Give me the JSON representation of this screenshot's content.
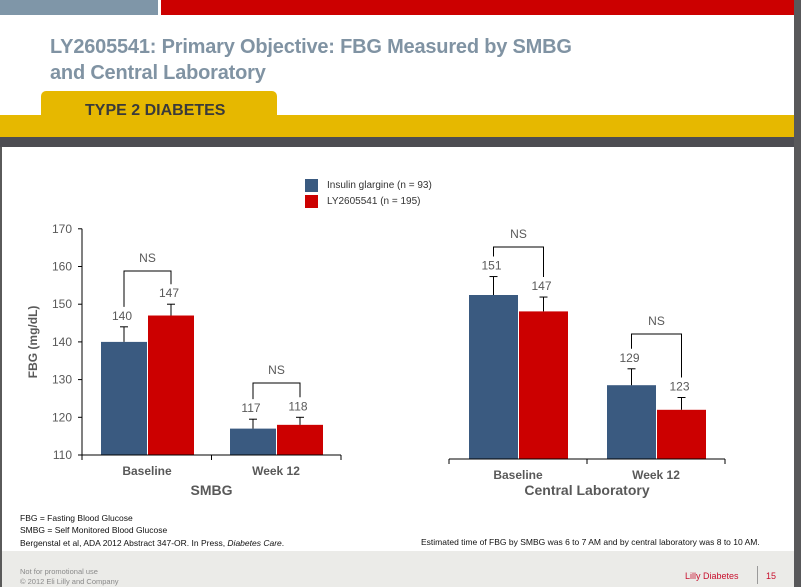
{
  "header": {
    "title_line1": "LY2605541: Primary Objective: FBG Measured by SMBG",
    "title_line2": "and Central Laboratory",
    "tab_label": "TYPE 2 DIABETES"
  },
  "colors": {
    "insulin_glargine": "#3a5a80",
    "ly2605541": "#cc0000",
    "title": "#8093a3",
    "accent_yellow": "#e6b800",
    "brand_red": "#c8102e"
  },
  "legend": [
    {
      "label": "Insulin glargine (n = 93)",
      "color": "#3a5a80"
    },
    {
      "label": "LY2605541 (n = 195)",
      "color": "#cc0000"
    }
  ],
  "chart_data": [
    {
      "type": "bar",
      "title": "SMBG",
      "xlabel": "SMBG",
      "ylabel": "FBG (mg/dL)",
      "ylim": [
        110,
        170
      ],
      "yticks": [
        110,
        120,
        130,
        140,
        150,
        160,
        170
      ],
      "categories": [
        "Baseline",
        "Week 12"
      ],
      "series": [
        {
          "name": "Insulin glargine (n = 93)",
          "values": [
            140,
            117
          ],
          "error": [
            4,
            2.5
          ]
        },
        {
          "name": "LY2605541 (n = 195)",
          "values": [
            147,
            118
          ],
          "error": [
            3,
            2
          ]
        }
      ],
      "annotations": [
        "NS",
        "NS"
      ],
      "data_labels": [
        [
          "140",
          "117"
        ],
        [
          "147",
          "118"
        ]
      ]
    },
    {
      "type": "bar",
      "title": "Central Laboratory",
      "xlabel": "Central Laboratory",
      "ylabel": "",
      "ylim": [
        111,
        170
      ],
      "categories": [
        "Baseline",
        "Week 12"
      ],
      "series": [
        {
          "name": "Insulin glargine (n = 93)",
          "values": [
            151,
            129
          ],
          "error": [
            4.5,
            4
          ]
        },
        {
          "name": "LY2605541 (n = 195)",
          "values": [
            147,
            123
          ],
          "error": [
            3.5,
            3
          ]
        }
      ],
      "annotations": [
        "NS",
        "NS"
      ],
      "data_labels": [
        [
          "151",
          "129"
        ],
        [
          "147",
          "123"
        ]
      ]
    }
  ],
  "footnotes": {
    "fbg": "FBG = Fasting Blood Glucose",
    "smbg": "SMBG = Self Monitored Blood Glucose",
    "ref_prefix": "Bergenstal et al, ADA 2012 Abstract 347-OR. In Press, ",
    "ref_journal": "Diabetes Care",
    "ref_suffix": ".",
    "estimated_time": "Estimated time of FBG by SMBG was 6 to 7 AM and by central laboratory was 8 to 10 AM."
  },
  "footer": {
    "disclaimer": "Not for promotional use",
    "copyright": "© 2012 Eli Lilly and Company",
    "brand": "Lilly Diabetes",
    "page_number": "15"
  }
}
